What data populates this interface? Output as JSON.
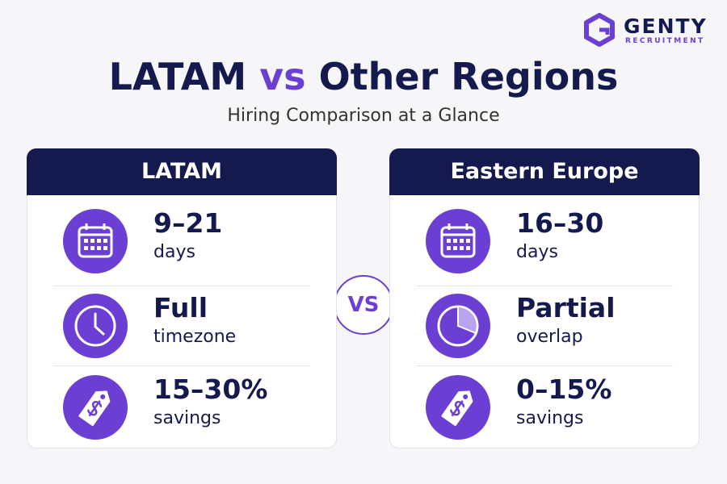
{
  "brand": {
    "name": "GENTY",
    "tagline": "RECRUITMENT"
  },
  "title": {
    "left": "LATAM",
    "middle": "vs",
    "right": "Other Regions"
  },
  "subtitle": "Hiring Comparison at a Glance",
  "vs_badge": "VS",
  "cards": [
    {
      "header": "LATAM",
      "rows": [
        {
          "value": "9–21",
          "label": "days"
        },
        {
          "value": "Full",
          "label": "timezone"
        },
        {
          "value": "15–30%",
          "label": "savings"
        }
      ]
    },
    {
      "header": "Eastern Europe",
      "rows": [
        {
          "value": "16–30",
          "label": "days"
        },
        {
          "value": "Partial",
          "label": "overlap"
        },
        {
          "value": "0–15%",
          "label": "savings"
        }
      ]
    }
  ]
}
